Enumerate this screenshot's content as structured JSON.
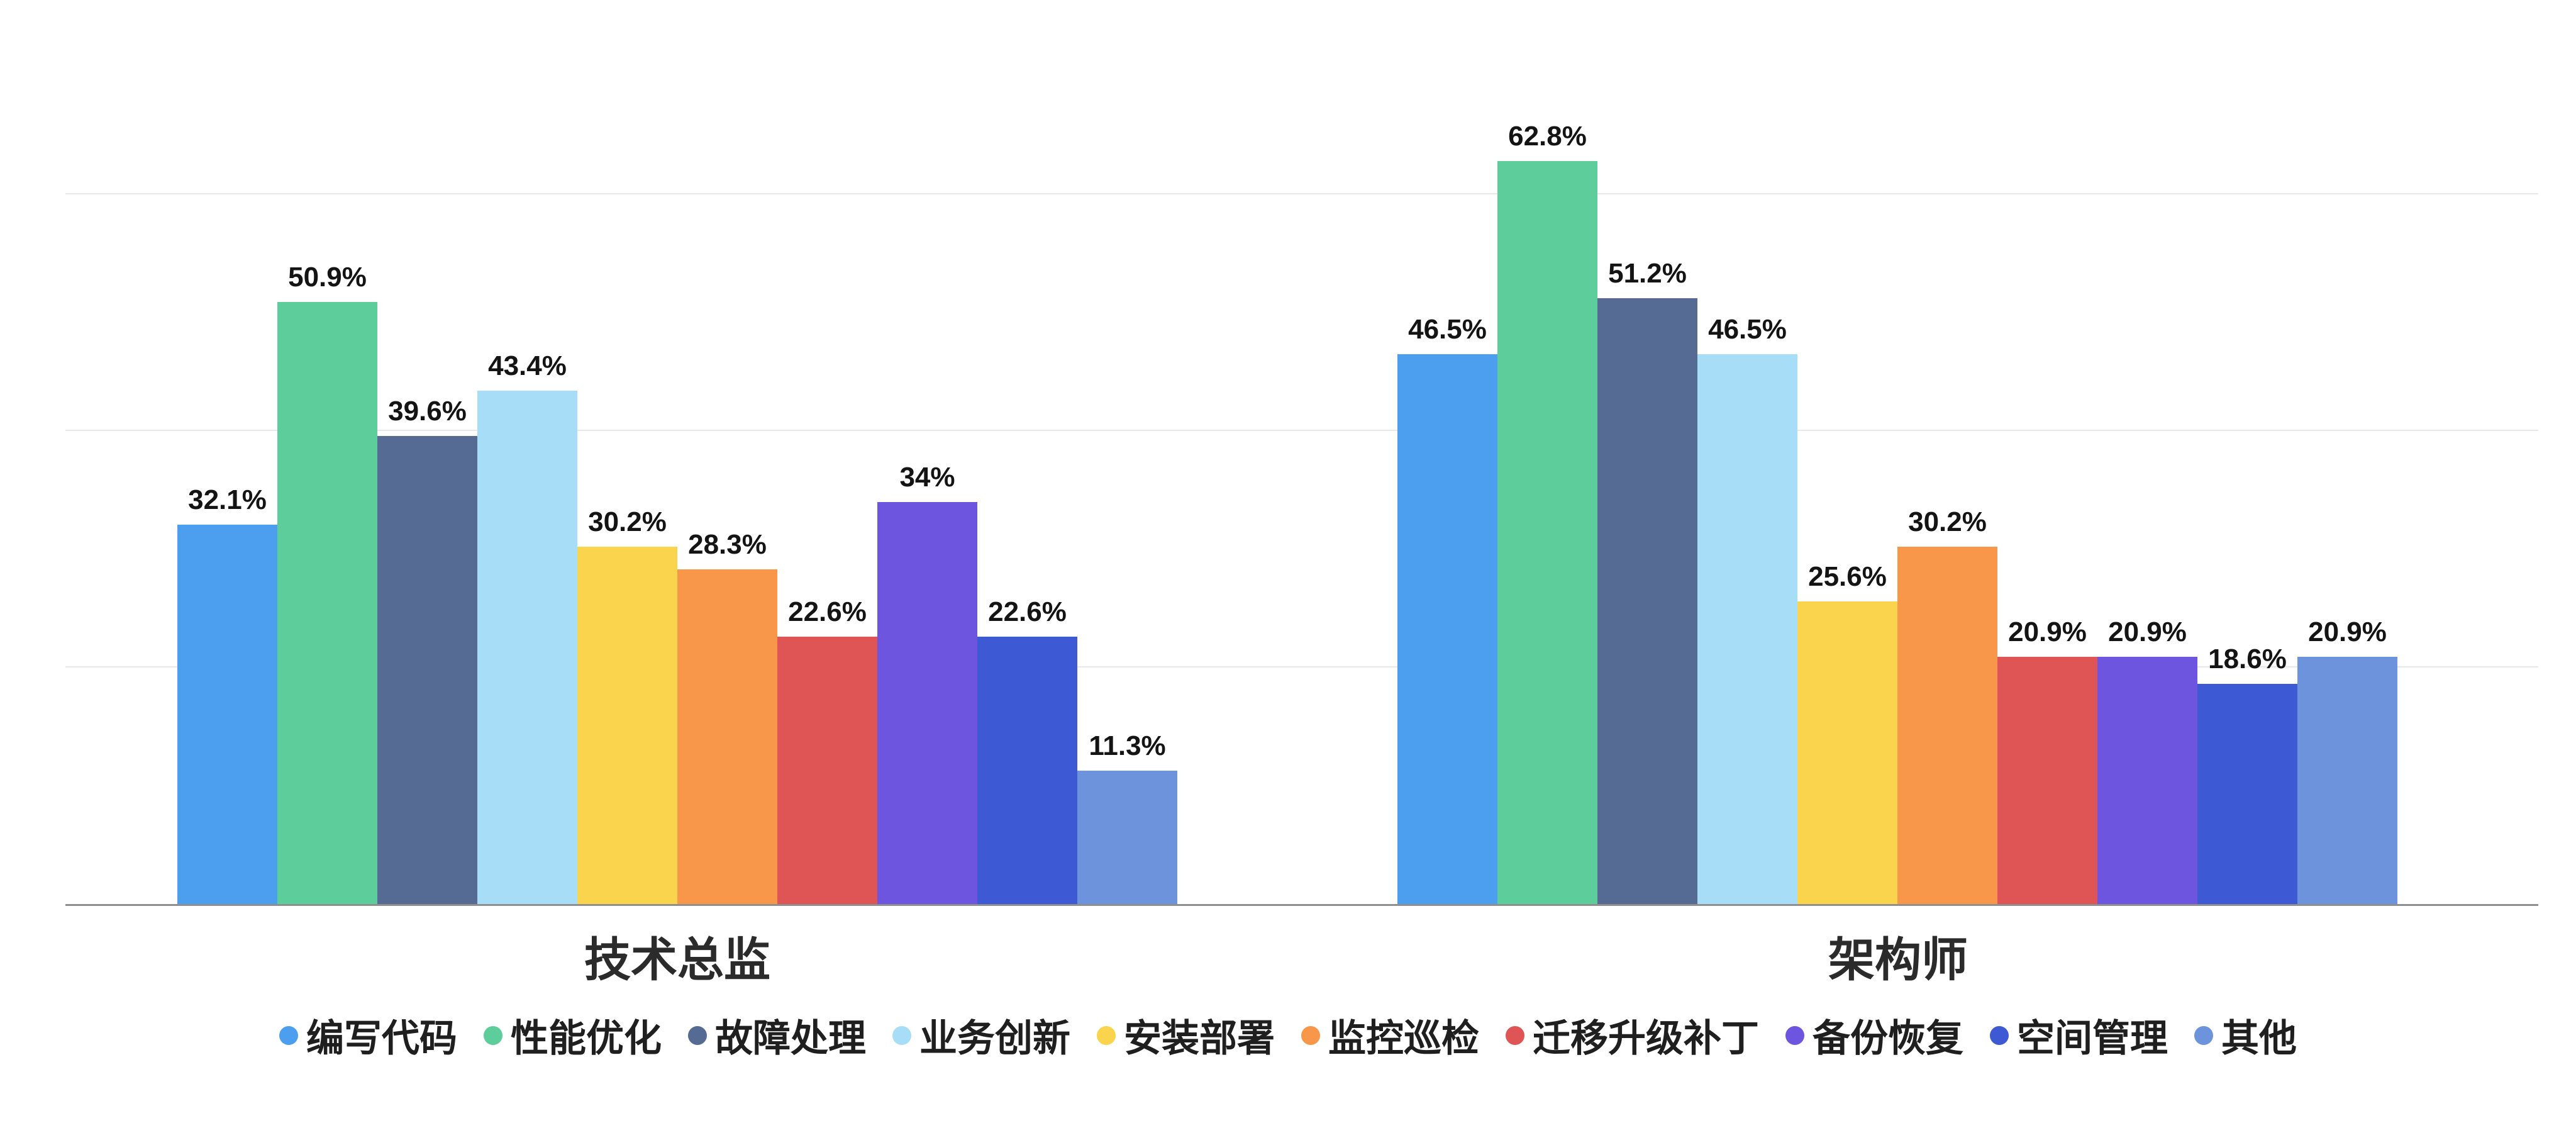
{
  "chart_data": {
    "type": "bar",
    "title": "",
    "xlabel": "",
    "ylabel": "",
    "value_suffix": "%",
    "ylim": [
      0,
      75
    ],
    "gridlines": [
      20,
      40,
      60
    ],
    "grid": true,
    "legend_position": "bottom",
    "categories": [
      "技术总监",
      "架构师"
    ],
    "series": [
      {
        "name": "编写代码",
        "color": "#4C9FEE",
        "values": [
          32.1,
          46.5
        ]
      },
      {
        "name": "性能优化",
        "color": "#5CCD9B",
        "values": [
          50.9,
          62.8
        ]
      },
      {
        "name": "故障处理",
        "color": "#566B93",
        "values": [
          39.6,
          51.2
        ]
      },
      {
        "name": "业务创新",
        "color": "#A8DDF8",
        "values": [
          43.4,
          46.5
        ]
      },
      {
        "name": "安装部署",
        "color": "#F9D44C",
        "values": [
          30.2,
          25.6
        ]
      },
      {
        "name": "监控巡检",
        "color": "#F8964A",
        "values": [
          28.3,
          30.2
        ]
      },
      {
        "name": "迁移升级补丁",
        "color": "#DF5454",
        "values": [
          22.6,
          20.9
        ]
      },
      {
        "name": "备份恢复",
        "color": "#6E55E0",
        "values": [
          34,
          20.9
        ]
      },
      {
        "name": "空间管理",
        "color": "#3D5AD4",
        "values": [
          22.6,
          18.6
        ]
      },
      {
        "name": "其他",
        "color": "#6C93DC",
        "values": [
          11.3,
          20.9
        ]
      }
    ],
    "value_labels_shown": [
      [
        "32.1%",
        "50.9%",
        "39.6%",
        "43.4%",
        "30.2%",
        "28.3%",
        "22.6%",
        "34%",
        "22.6%",
        "11.3%"
      ],
      [
        "46.5%",
        "62.8%",
        "51.2%",
        "46.5%",
        "25.6%",
        "30.2%",
        "20.9%",
        "20.9%",
        "18.6%",
        "20.9%"
      ]
    ]
  }
}
